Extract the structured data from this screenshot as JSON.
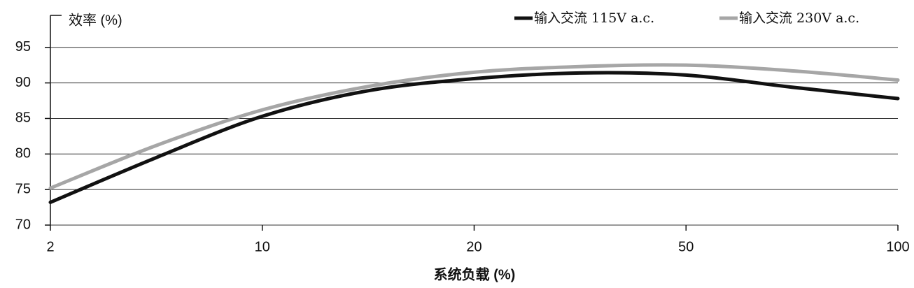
{
  "chart_data": {
    "type": "line",
    "y_label": "效率 (%)",
    "x_label": "系统负载 (%)",
    "categories": [
      "2",
      null,
      "10",
      null,
      "20",
      null,
      "50",
      null,
      "100"
    ],
    "series": [
      {
        "name": "输入交流 115V a.c.",
        "color": "#111111",
        "values": [
          73.2,
          79.5,
          85.3,
          88.9,
          90.6,
          91.4,
          91.1,
          89.4,
          87.8
        ]
      },
      {
        "name": "输入交流 230V a.c.",
        "color": "#a6a6a6",
        "values": [
          75.2,
          81.2,
          86.2,
          89.5,
          91.5,
          92.3,
          92.5,
          91.7,
          90.4
        ]
      }
    ],
    "ylim": [
      70,
      99.5
    ],
    "yticks": [
      70,
      75,
      80,
      85,
      90,
      95
    ],
    "grid": true,
    "legend": "top-right"
  }
}
